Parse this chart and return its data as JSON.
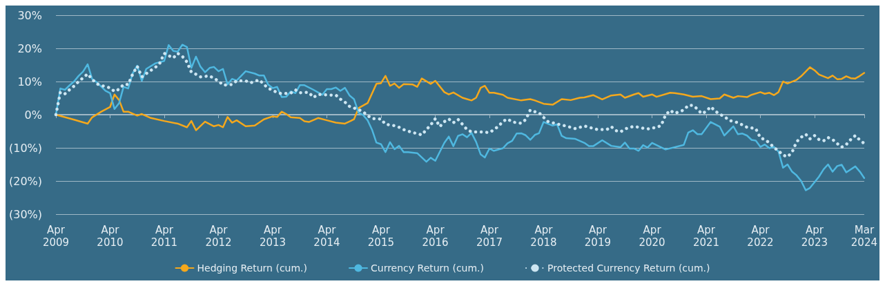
{
  "chart_data": {
    "type": "line",
    "ylim": [
      -30,
      30
    ],
    "yticks": [
      {
        "value": -30,
        "label": "(30%)"
      },
      {
        "value": -20,
        "label": "(20%)"
      },
      {
        "value": -10,
        "label": "(10%)"
      },
      {
        "value": 0,
        "label": "0%"
      },
      {
        "value": 10,
        "label": "10%"
      },
      {
        "value": 20,
        "label": "20%"
      },
      {
        "value": 30,
        "label": "30%"
      }
    ],
    "xlim": [
      "2009-04",
      "2024-03"
    ],
    "xticks": [
      {
        "value": "2009-04",
        "label": "Apr 2009"
      },
      {
        "value": "2010-04",
        "label": "Apr 2010"
      },
      {
        "value": "2011-04",
        "label": "Apr 2011"
      },
      {
        "value": "2012-04",
        "label": "Apr 2012"
      },
      {
        "value": "2013-04",
        "label": "Apr 2013"
      },
      {
        "value": "2014-04",
        "label": "Apr 2014"
      },
      {
        "value": "2015-04",
        "label": "Apr 2015"
      },
      {
        "value": "2016-04",
        "label": "Apr 2016"
      },
      {
        "value": "2017-04",
        "label": "Apr 2017"
      },
      {
        "value": "2018-04",
        "label": "Apr 2018"
      },
      {
        "value": "2019-04",
        "label": "Apr 2019"
      },
      {
        "value": "2020-04",
        "label": "Apr 2020"
      },
      {
        "value": "2021-04",
        "label": "Apr 2021"
      },
      {
        "value": "2022-04",
        "label": "Apr 2022"
      },
      {
        "value": "2023-04",
        "label": "Apr 2023"
      },
      {
        "value": "2024-03",
        "label": "Mar 2024"
      }
    ],
    "grid": "y",
    "legend": "bottom",
    "marker": "none",
    "series": [
      {
        "name": "Hedging Return (cum.)",
        "color": "#f5a81c",
        "line_style": "solid",
        "x": [
          "2009-04",
          "2009-08",
          "2009-11",
          "2009-12",
          "2010-02",
          "2010-04",
          "2010-05",
          "2010-06",
          "2010-07",
          "2010-08",
          "2010-10",
          "2010-11",
          "2011-01",
          "2011-04",
          "2011-07",
          "2011-09",
          "2011-10",
          "2011-11",
          "2012-01",
          "2012-03",
          "2012-04",
          "2012-05",
          "2012-06",
          "2012-07",
          "2012-08",
          "2012-10",
          "2012-12",
          "2013-02",
          "2013-04",
          "2013-05",
          "2013-06",
          "2013-07",
          "2013-08",
          "2013-10",
          "2013-11",
          "2013-12",
          "2014-02",
          "2014-04",
          "2014-06",
          "2014-08",
          "2014-10",
          "2014-11",
          "2015-01",
          "2015-03",
          "2015-04",
          "2015-05",
          "2015-06",
          "2015-07",
          "2015-08",
          "2015-09",
          "2015-11",
          "2015-12",
          "2016-01",
          "2016-03",
          "2016-04",
          "2016-06",
          "2016-07",
          "2016-08",
          "2016-10",
          "2016-11",
          "2016-12",
          "2017-01",
          "2017-02",
          "2017-03",
          "2017-04",
          "2017-05",
          "2017-07",
          "2017-08",
          "2017-11",
          "2018-01",
          "2018-02",
          "2018-04",
          "2018-06",
          "2018-08",
          "2018-10",
          "2018-12",
          "2019-01",
          "2019-03",
          "2019-05",
          "2019-07",
          "2019-09",
          "2019-10",
          "2019-12",
          "2020-01",
          "2020-02",
          "2020-04",
          "2020-05",
          "2020-08",
          "2020-09",
          "2020-11",
          "2021-01",
          "2021-03",
          "2021-05",
          "2021-07",
          "2021-08",
          "2021-10",
          "2021-11",
          "2022-01",
          "2022-02",
          "2022-04",
          "2022-05",
          "2022-06",
          "2022-07",
          "2022-08",
          "2022-09",
          "2022-10",
          "2022-12",
          "2023-01",
          "2023-03",
          "2023-04",
          "2023-05",
          "2023-07",
          "2023-08",
          "2023-09",
          "2023-10",
          "2023-11",
          "2023-12",
          "2024-01",
          "2024-02",
          "2024-03"
        ],
        "values": [
          0,
          -1.5,
          -2.7,
          -0.8,
          0.9,
          2.3,
          6.1,
          4.4,
          0.9,
          0.9,
          -0.3,
          0.2,
          -1.0,
          -1.9,
          -2.7,
          -3.8,
          -1.9,
          -4.7,
          -2.1,
          -3.5,
          -3.1,
          -3.8,
          -0.7,
          -2.4,
          -1.7,
          -3.5,
          -3.3,
          -1.4,
          -0.5,
          -0.7,
          0.9,
          0.2,
          -0.8,
          -1.0,
          -2.0,
          -2.2,
          -1.0,
          -1.7,
          -2.4,
          -2.7,
          -1.4,
          2.0,
          3.5,
          9.3,
          9.5,
          11.7,
          8.7,
          9.4,
          8.1,
          9.2,
          9.1,
          8.4,
          10.9,
          9.3,
          10.2,
          6.8,
          6.1,
          6.7,
          5.1,
          4.7,
          4.3,
          5.1,
          8.1,
          8.7,
          6.6,
          6.6,
          6.0,
          5.1,
          4.3,
          4.7,
          4.3,
          3.3,
          3.0,
          4.7,
          4.4,
          5.1,
          5.2,
          5.9,
          4.6,
          5.8,
          6.1,
          5.1,
          6.1,
          6.5,
          5.4,
          6.1,
          5.4,
          6.6,
          6.5,
          6.1,
          5.4,
          5.6,
          4.7,
          4.9,
          6.1,
          5.1,
          5.6,
          5.3,
          6.0,
          6.8,
          6.3,
          6.6,
          5.9,
          6.8,
          10.0,
          9.4,
          10.5,
          11.6,
          14.3,
          13.4,
          12.1,
          11.0,
          11.8,
          10.7,
          10.8,
          11.6,
          11.0,
          10.9,
          11.7,
          12.6
        ]
      },
      {
        "name": "Currency Return (cum.)",
        "color": "#4fb8e0",
        "line_style": "solid",
        "x": [
          "2009-04",
          "2009-05",
          "2009-06",
          "2009-07",
          "2009-08",
          "2009-09",
          "2009-10",
          "2009-11",
          "2009-12",
          "2010-01",
          "2010-03",
          "2010-04",
          "2010-05",
          "2010-06",
          "2010-07",
          "2010-08",
          "2010-09",
          "2010-10",
          "2010-11",
          "2010-12",
          "2011-02",
          "2011-04",
          "2011-05",
          "2011-06",
          "2011-07",
          "2011-08",
          "2011-09",
          "2011-10",
          "2011-11",
          "2011-12",
          "2012-01",
          "2012-02",
          "2012-03",
          "2012-04",
          "2012-05",
          "2012-06",
          "2012-07",
          "2012-08",
          "2012-10",
          "2012-12",
          "2013-01",
          "2013-02",
          "2013-03",
          "2013-04",
          "2013-05",
          "2013-06",
          "2013-07",
          "2013-08",
          "2013-09",
          "2013-10",
          "2013-11",
          "2014-01",
          "2014-03",
          "2014-04",
          "2014-05",
          "2014-06",
          "2014-07",
          "2014-08",
          "2014-09",
          "2014-10",
          "2014-11",
          "2014-12",
          "2015-01",
          "2015-02",
          "2015-03",
          "2015-04",
          "2015-05",
          "2015-06",
          "2015-07",
          "2015-08",
          "2015-09",
          "2015-10",
          "2015-12",
          "2016-02",
          "2016-03",
          "2016-04",
          "2016-06",
          "2016-07",
          "2016-08",
          "2016-09",
          "2016-10",
          "2016-11",
          "2016-12",
          "2017-01",
          "2017-02",
          "2017-03",
          "2017-04",
          "2017-05",
          "2017-07",
          "2017-08",
          "2017-09",
          "2017-10",
          "2017-11",
          "2017-12",
          "2018-01",
          "2018-02",
          "2018-03",
          "2018-04",
          "2018-06",
          "2018-07",
          "2018-08",
          "2018-09",
          "2018-11",
          "2019-01",
          "2019-02",
          "2019-03",
          "2019-05",
          "2019-07",
          "2019-09",
          "2019-10",
          "2019-11",
          "2019-12",
          "2020-01",
          "2020-02",
          "2020-03",
          "2020-04",
          "2020-07",
          "2020-11",
          "2020-12",
          "2021-01",
          "2021-02",
          "2021-03",
          "2021-05",
          "2021-07",
          "2021-08",
          "2021-10",
          "2021-11",
          "2021-12",
          "2022-01",
          "2022-02",
          "2022-03",
          "2022-04",
          "2022-05",
          "2022-06",
          "2022-07",
          "2022-08",
          "2022-09",
          "2022-10",
          "2022-11",
          "2022-12",
          "2023-01",
          "2023-02",
          "2023-03",
          "2023-05",
          "2023-06",
          "2023-07",
          "2023-08",
          "2023-09",
          "2023-10",
          "2023-11",
          "2024-01",
          "2024-02",
          "2024-03"
        ],
        "values": [
          0,
          7.9,
          7.5,
          8.8,
          10.0,
          11.7,
          13.0,
          15.2,
          10.8,
          9.8,
          7.2,
          6.5,
          1.7,
          3.5,
          8.4,
          7.9,
          12.5,
          14.8,
          10.2,
          13.8,
          15.5,
          16.2,
          21.0,
          19.2,
          19.0,
          21.1,
          20.4,
          14.1,
          17.5,
          14.5,
          12.8,
          14.1,
          14.4,
          13.1,
          13.8,
          9.1,
          10.8,
          10.3,
          13.1,
          12.4,
          11.8,
          11.8,
          9.1,
          8.0,
          8.4,
          5.3,
          5.4,
          7.0,
          6.5,
          8.9,
          8.9,
          7.5,
          6.0,
          7.7,
          7.7,
          8.2,
          7.2,
          8.1,
          5.8,
          4.7,
          0.6,
          -0.1,
          -1.7,
          -4.7,
          -8.4,
          -8.9,
          -11.3,
          -8.3,
          -10.4,
          -9.4,
          -11.3,
          -11.3,
          -11.6,
          -14.2,
          -13.0,
          -13.9,
          -8.5,
          -6.6,
          -9.5,
          -6.4,
          -5.9,
          -6.8,
          -5.5,
          -8.2,
          -12.0,
          -12.9,
          -10.2,
          -10.9,
          -10.1,
          -8.6,
          -7.9,
          -5.7,
          -5.6,
          -6.2,
          -7.6,
          -6.1,
          -5.6,
          -2.2,
          -3.3,
          -2.9,
          -6.4,
          -7.1,
          -7.3,
          -8.5,
          -9.5,
          -9.5,
          -7.7,
          -9.4,
          -9.8,
          -8.4,
          -10.2,
          -10.2,
          -10.9,
          -9.2,
          -9.9,
          -8.5,
          -10.5,
          -9.1,
          -5.4,
          -4.7,
          -5.9,
          -5.9,
          -2.2,
          -3.6,
          -6.3,
          -3.5,
          -5.9,
          -5.7,
          -6.3,
          -7.6,
          -7.8,
          -9.7,
          -9.0,
          -10.1,
          -9.7,
          -11.1,
          -16.0,
          -15.0,
          -17.2,
          -18.3,
          -20.0,
          -22.8,
          -22.1,
          -18.7,
          -16.5,
          -15.0,
          -17.2,
          -15.5,
          -15.1,
          -17.4,
          -15.6,
          -17.2,
          -19.1
        ]
      },
      {
        "name": "Protected Currency Return (cum.)",
        "color": "#cde6f2",
        "line_style": "dotted",
        "x": [
          "2009-04",
          "2009-05",
          "2009-06",
          "2009-07",
          "2009-08",
          "2009-09",
          "2009-10",
          "2009-11",
          "2009-12",
          "2010-01",
          "2010-02",
          "2010-04",
          "2010-05",
          "2010-06",
          "2010-07",
          "2010-08",
          "2010-09",
          "2010-10",
          "2010-11",
          "2010-12",
          "2011-02",
          "2011-03",
          "2011-04",
          "2011-05",
          "2011-06",
          "2011-07",
          "2011-08",
          "2011-09",
          "2011-10",
          "2011-11",
          "2011-12",
          "2012-02",
          "2012-03",
          "2012-04",
          "2012-05",
          "2012-07",
          "2012-08",
          "2012-10",
          "2012-11",
          "2013-01",
          "2013-02",
          "2013-03",
          "2013-05",
          "2013-06",
          "2013-08",
          "2013-09",
          "2013-10",
          "2013-11",
          "2013-12",
          "2014-01",
          "2014-02",
          "2014-05",
          "2014-06",
          "2014-07",
          "2014-08",
          "2014-09",
          "2014-11",
          "2014-12",
          "2015-01",
          "2015-02",
          "2015-04",
          "2015-05",
          "2015-07",
          "2015-08",
          "2015-09",
          "2015-11",
          "2015-12",
          "2016-01",
          "2016-02",
          "2016-03",
          "2016-04",
          "2016-05",
          "2016-06",
          "2016-07",
          "2016-08",
          "2016-09",
          "2016-10",
          "2016-11",
          "2016-12",
          "2017-01",
          "2017-02",
          "2017-04",
          "2017-05",
          "2017-06",
          "2017-07",
          "2017-08",
          "2017-09",
          "2017-11",
          "2017-12",
          "2018-01",
          "2018-02",
          "2018-03",
          "2018-04",
          "2018-05",
          "2018-07",
          "2018-08",
          "2018-10",
          "2018-11",
          "2019-01",
          "2019-02",
          "2019-04",
          "2019-06",
          "2019-07",
          "2019-08",
          "2019-09",
          "2019-10",
          "2019-12",
          "2020-02",
          "2020-03",
          "2020-05",
          "2020-06",
          "2020-07",
          "2020-08",
          "2020-09",
          "2020-11",
          "2020-12",
          "2021-01",
          "2021-02",
          "2021-03",
          "2021-04",
          "2021-05",
          "2021-06",
          "2021-07",
          "2021-08",
          "2021-09",
          "2021-11",
          "2021-12",
          "2022-01",
          "2022-03",
          "2022-04",
          "2022-05",
          "2022-06",
          "2022-07",
          "2022-08",
          "2022-09",
          "2022-10",
          "2022-11",
          "2022-12",
          "2023-01",
          "2023-02",
          "2023-03",
          "2023-04",
          "2023-05",
          "2023-06",
          "2023-07",
          "2023-08",
          "2023-09",
          "2023-10",
          "2023-11",
          "2023-12",
          "2024-01",
          "2024-02",
          "2024-03"
        ],
        "values": [
          0,
          6.8,
          6.3,
          7.5,
          8.6,
          10.0,
          11.1,
          12.3,
          10.7,
          9.3,
          8.8,
          8.1,
          7.0,
          7.7,
          9.1,
          9.1,
          12.3,
          14.6,
          11.4,
          12.4,
          14.3,
          15.4,
          18.5,
          17.8,
          17.1,
          18.5,
          17.6,
          15.9,
          12.8,
          12.2,
          11.4,
          11.7,
          10.9,
          10.2,
          8.9,
          9.1,
          10.2,
          10.2,
          9.6,
          10.5,
          9.1,
          8.0,
          6.7,
          6.3,
          6.5,
          7.5,
          6.6,
          6.7,
          6.7,
          5.2,
          6.1,
          5.9,
          5.9,
          4.7,
          3.8,
          2.5,
          1.5,
          0.9,
          -0.3,
          -1.2,
          -1.3,
          -2.9,
          -3.3,
          -3.8,
          -4.5,
          -5.4,
          -5.7,
          -6.1,
          -4.5,
          -3.1,
          -1.2,
          -3.6,
          -2.1,
          -1.3,
          -2.4,
          -1.4,
          -2.9,
          -4.5,
          -5.2,
          -5.2,
          -5.2,
          -5.4,
          -4.5,
          -3.5,
          -2.0,
          -1.3,
          -2.2,
          -2.6,
          -1.5,
          1.4,
          0.9,
          0.6,
          -0.8,
          -2.1,
          -2.8,
          -3.1,
          -3.8,
          -4.2,
          -3.4,
          -3.8,
          -4.5,
          -4.5,
          -3.6,
          -4.8,
          -5.2,
          -4.3,
          -3.5,
          -4.1,
          -4.3,
          -3.8,
          -3.3,
          -0.1,
          1.3,
          0.4,
          1.4,
          2.8,
          2.8,
          1.7,
          0.3,
          1.0,
          2.4,
          1.1,
          0.1,
          -0.5,
          -1.7,
          -2.4,
          -3.1,
          -3.8,
          -4.2,
          -7.0,
          -7.5,
          -8.5,
          -9.9,
          -10.9,
          -12.2,
          -12.7,
          -11.3,
          -8.2,
          -6.8,
          -5.9,
          -7.3,
          -6.3,
          -7.5,
          -7.9,
          -6.9,
          -7.5,
          -8.7,
          -9.8,
          -9.0,
          -7.5,
          -6.3,
          -7.7,
          -8.7
        ]
      }
    ]
  }
}
